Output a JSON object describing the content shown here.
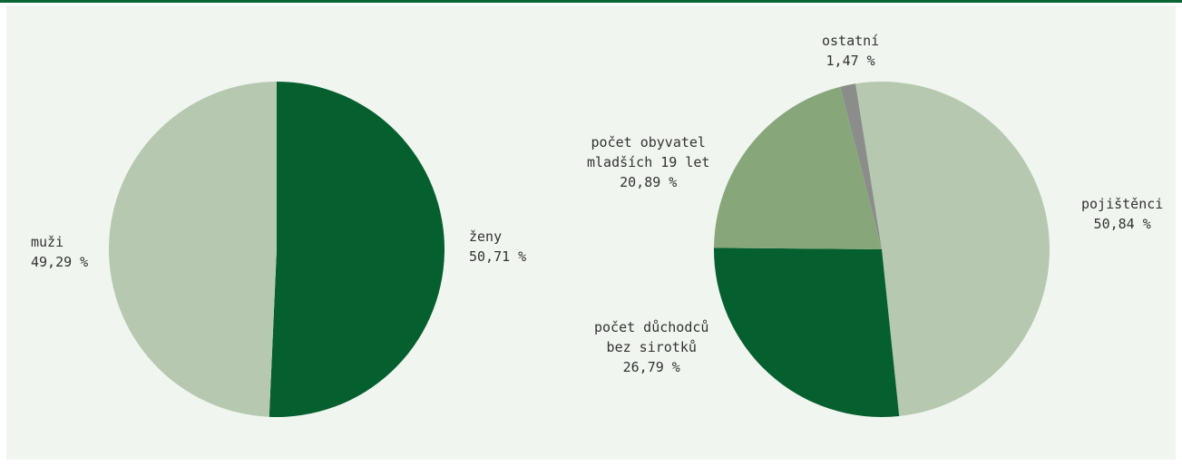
{
  "chart_data": [
    {
      "type": "pie",
      "slices": [
        {
          "label": "ženy",
          "value": 50.71,
          "value_label": "50,71 %",
          "color": "#055f2e"
        },
        {
          "label": "muži",
          "value": 49.29,
          "value_label": "49,29 %",
          "color": "#b6c9b0"
        }
      ]
    },
    {
      "type": "pie",
      "slices": [
        {
          "label": "pojištěnci",
          "value": 50.84,
          "value_label": "50,84 %",
          "color": "#b6c9b0"
        },
        {
          "label": "počet důchodců bez sirotků",
          "label_lines": [
            "počet důchodců",
            "bez sirotků"
          ],
          "value": 26.79,
          "value_label": "26,79 %",
          "color": "#055f2e"
        },
        {
          "label": "počet obyvatel mladších 19 let",
          "label_lines": [
            "počet obyvatel",
            "mladších 19 let"
          ],
          "value": 20.89,
          "value_label": "20,89 %",
          "color": "#87a77b"
        },
        {
          "label": "ostatní",
          "value": 1.47,
          "value_label": "1,47 %",
          "color": "#8a8d8a"
        }
      ]
    }
  ]
}
